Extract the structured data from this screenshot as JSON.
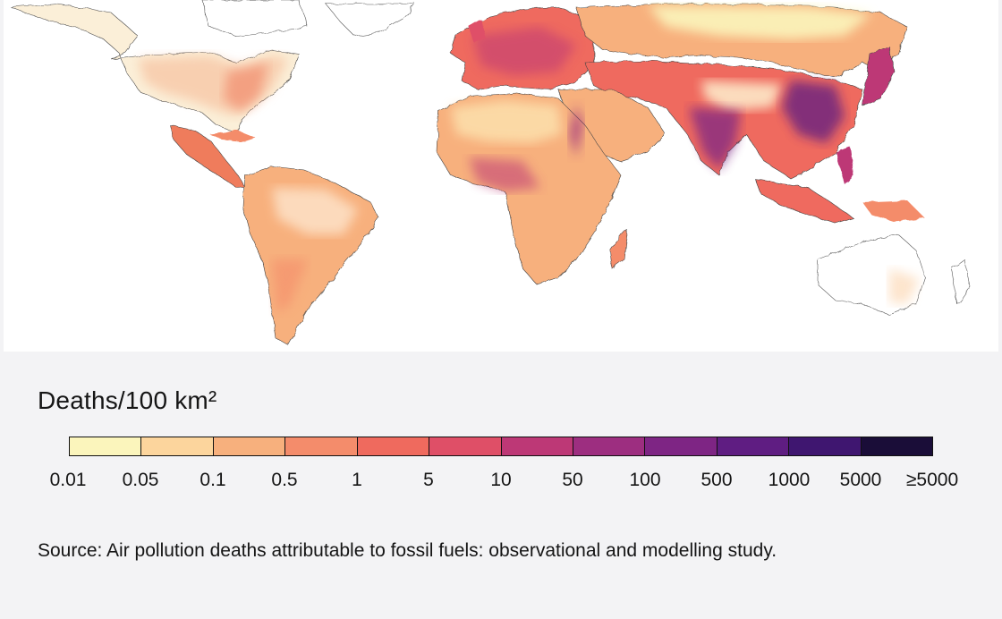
{
  "legend": {
    "title": "Deaths/100 km²",
    "colors": [
      "#fbf5bc",
      "#fcd59d",
      "#f7b07d",
      "#f48c6b",
      "#ef6a5e",
      "#df4f67",
      "#bd3876",
      "#9d2e80",
      "#7e2584",
      "#5f1d82",
      "#3f1670",
      "#1a0d38"
    ],
    "ticks": [
      "0.01",
      "0.05",
      "0.1",
      "0.5",
      "1",
      "5",
      "10",
      "50",
      "100",
      "500",
      "1000",
      "5000",
      "≥5000"
    ]
  },
  "source": "Source: Air pollution deaths attributable to fossil fuels: observational and modelling study."
}
